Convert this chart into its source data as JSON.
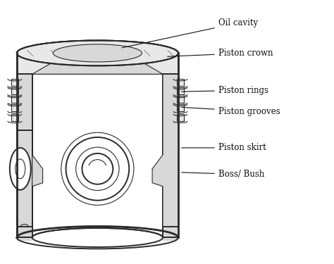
{
  "background_color": "#ffffff",
  "line_color": "#2a2a2a",
  "fill_gray": "#e8e8e8",
  "fill_dark": "#c8c8c8",
  "fill_stipple": "#d8d8d8",
  "fill_white": "#ffffff",
  "labels": {
    "oil_cavity": "Oil cavity",
    "piston_crown": "Piston crown",
    "piston_rings": "Piston rings",
    "piston_grooves": "Piston grooves",
    "piston_skirt": "Piston skirt",
    "boss_bush": "Boss/ Bush"
  },
  "figsize": [
    4.74,
    3.75
  ],
  "dpi": 100
}
